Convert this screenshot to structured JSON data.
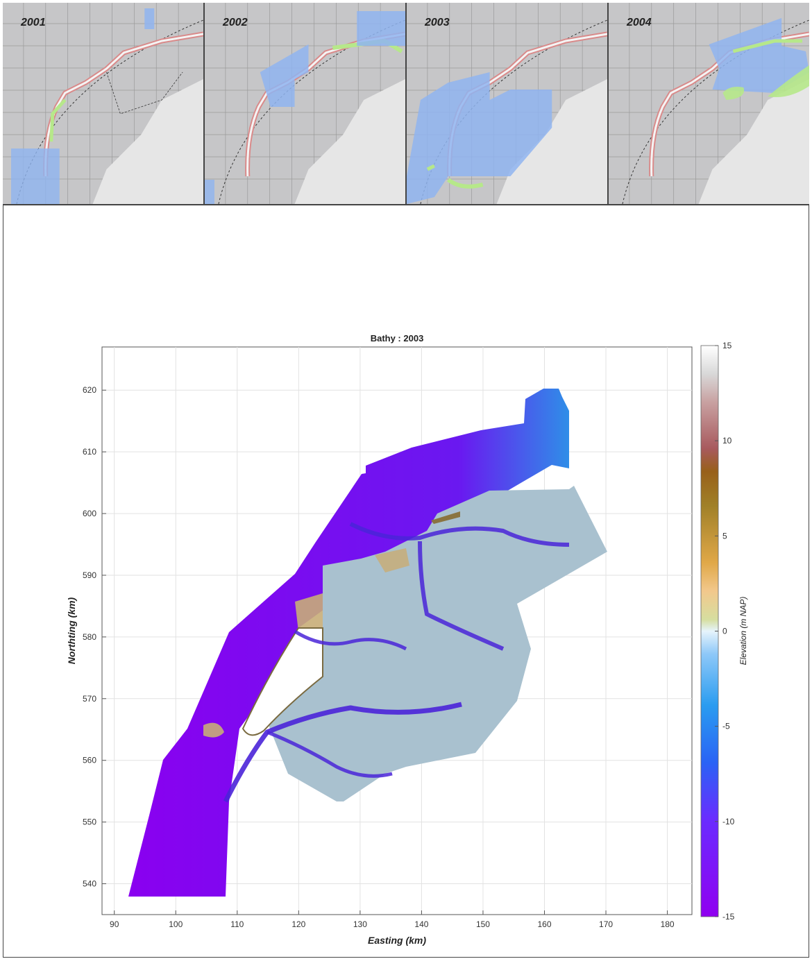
{
  "panels": [
    {
      "year": "2001"
    },
    {
      "year": "2002"
    },
    {
      "year": "2003"
    },
    {
      "year": "2004"
    }
  ],
  "chart_data": {
    "type": "heatmap",
    "title": "Bathy : 2003",
    "xlabel": "Easting (km)",
    "ylabel": "Northting (km)",
    "xlim": [
      88,
      184
    ],
    "ylim": [
      535,
      627
    ],
    "x_ticks": [
      90,
      100,
      110,
      120,
      130,
      140,
      150,
      160,
      170,
      180
    ],
    "y_ticks": [
      540,
      550,
      560,
      570,
      580,
      590,
      600,
      610,
      620
    ],
    "grid": true,
    "colorbar": {
      "label": "Elevation (m NAP)",
      "range": [
        -15,
        15
      ],
      "ticks": [
        -15,
        -10,
        -5,
        0,
        5,
        10,
        15
      ]
    },
    "colors": {
      "deep": "#8a00f0",
      "channel": "#3a24d8",
      "shallow": "#9ebfd8",
      "flat": "#b4c3c8",
      "sand": "#c8ad78",
      "land": "#ffffff"
    }
  }
}
